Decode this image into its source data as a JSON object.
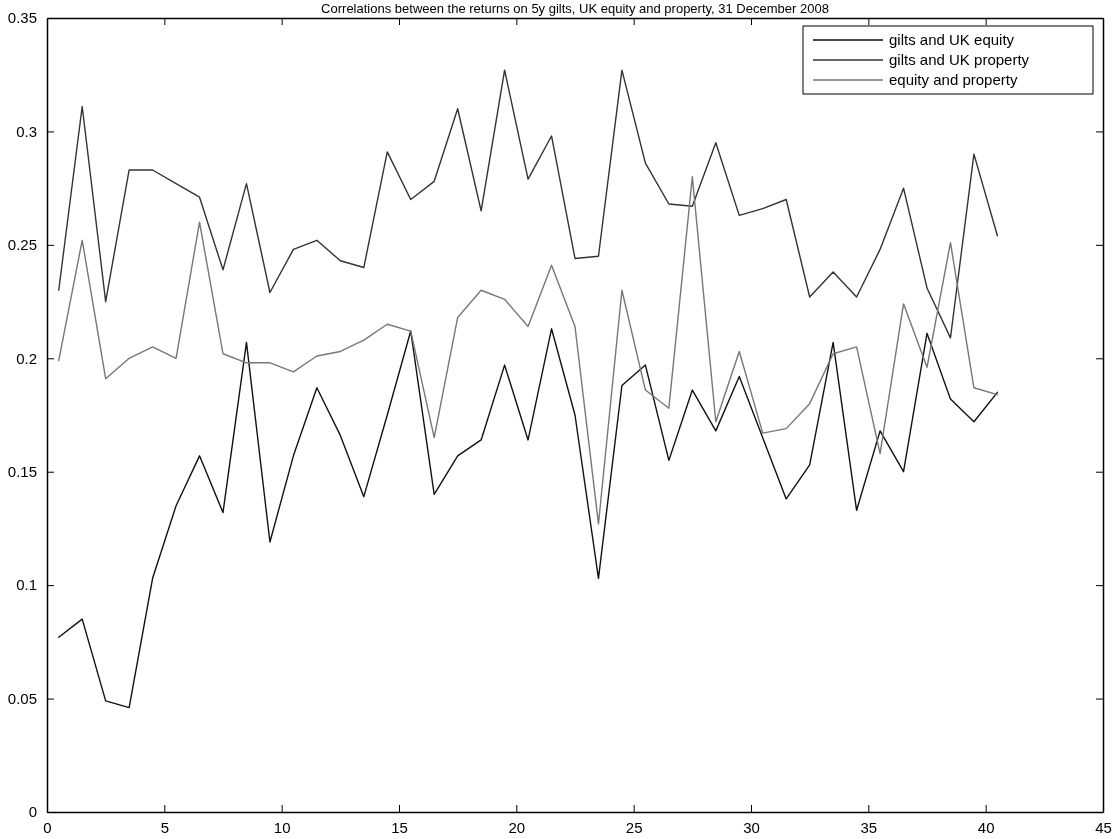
{
  "chart_data": {
    "type": "line",
    "title": "Correlations between the returns on 5y gilts, UK equity and property, 31 December 2008",
    "x": [
      0.5,
      1.5,
      2.5,
      3.5,
      4.5,
      5.5,
      6.5,
      7.5,
      8.5,
      9.5,
      10.5,
      11.5,
      12.5,
      13.5,
      14.5,
      15.5,
      16.5,
      17.5,
      18.5,
      19.5,
      20.5,
      21.5,
      22.5,
      23.5,
      24.5,
      25.5,
      26.5,
      27.5,
      28.5,
      29.5,
      30.5,
      31.5,
      32.5,
      33.5,
      34.5,
      35.5,
      36.5,
      37.5,
      38.5,
      39.5,
      40.5
    ],
    "series": [
      {
        "name": "gilts and UK equity",
        "color": "#111111",
        "values": [
          0.077,
          0.085,
          0.049,
          0.046,
          0.103,
          0.135,
          0.157,
          0.132,
          0.207,
          0.119,
          0.157,
          0.187,
          0.166,
          0.139,
          0.175,
          0.212,
          0.14,
          0.157,
          0.164,
          0.197,
          0.164,
          0.213,
          0.175,
          0.103,
          0.188,
          0.197,
          0.155,
          0.186,
          0.168,
          0.192,
          0.165,
          0.138,
          0.153,
          0.207,
          0.133,
          0.168,
          0.15,
          0.211,
          0.182,
          0.172,
          0.185
        ]
      },
      {
        "name": "gilts and UK property",
        "color": "#333333",
        "values": [
          0.23,
          0.311,
          0.225,
          0.283,
          0.283,
          0.277,
          0.271,
          0.239,
          0.277,
          0.229,
          0.248,
          0.252,
          0.243,
          0.24,
          0.291,
          0.27,
          0.278,
          0.31,
          0.265,
          0.327,
          0.279,
          0.298,
          0.244,
          0.245,
          0.327,
          0.286,
          0.268,
          0.267,
          0.295,
          0.263,
          0.266,
          0.27,
          0.227,
          0.238,
          0.227,
          0.248,
          0.275,
          0.231,
          0.209,
          0.29,
          0.254
        ]
      },
      {
        "name": "equity and property",
        "color": "#777777",
        "values": [
          0.199,
          0.252,
          0.191,
          0.2,
          0.205,
          0.2,
          0.26,
          0.202,
          0.198,
          0.198,
          0.194,
          0.201,
          0.203,
          0.208,
          0.215,
          0.212,
          0.165,
          0.218,
          0.23,
          0.226,
          0.214,
          0.241,
          0.214,
          0.127,
          0.23,
          0.186,
          0.178,
          0.28,
          0.172,
          0.203,
          0.167,
          0.169,
          0.18,
          0.202,
          0.205,
          0.158,
          0.224,
          0.196,
          0.251,
          0.187,
          0.184
        ]
      }
    ],
    "xlim": [
      0,
      45
    ],
    "xticks": [
      0,
      5,
      10,
      15,
      20,
      25,
      30,
      35,
      40,
      45
    ],
    "ylim": [
      0,
      0.35
    ],
    "yticks": [
      0,
      0.05,
      0.1,
      0.15,
      0.2,
      0.25,
      0.3,
      0.35
    ],
    "grid": false,
    "legend": "top right",
    "line_style": "solid",
    "marker": "none"
  }
}
